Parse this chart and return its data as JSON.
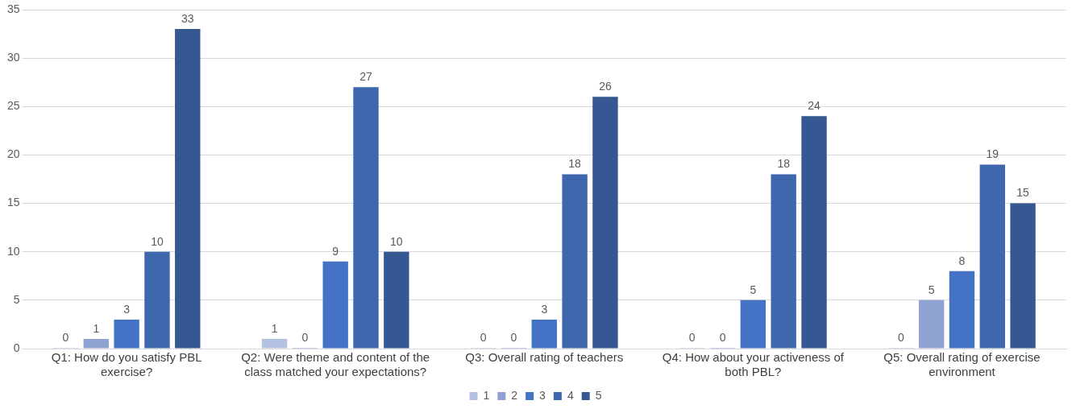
{
  "chart_data": {
    "type": "bar",
    "categories": [
      "Q1: How do you satisfy PBL exercise?",
      "Q2: Were theme and content of the class matched your expectations?",
      "Q3: Overall rating of teachers",
      "Q4: How about your activeness of both PBL?",
      "Q5: Overall rating of exercise environment"
    ],
    "series": [
      {
        "name": "1",
        "color": "#b4c2e2",
        "values": [
          0,
          1,
          0,
          0,
          0
        ]
      },
      {
        "name": "2",
        "color": "#8fa3d2",
        "values": [
          1,
          0,
          0,
          0,
          5
        ]
      },
      {
        "name": "3",
        "color": "#4472c4",
        "values": [
          3,
          9,
          3,
          5,
          8
        ]
      },
      {
        "name": "4",
        "color": "#3e67ad",
        "values": [
          10,
          27,
          18,
          18,
          19
        ]
      },
      {
        "name": "5",
        "color": "#355792",
        "values": [
          33,
          10,
          26,
          24,
          15
        ]
      }
    ],
    "ylim": [
      0,
      35
    ],
    "yticks": [
      0,
      5,
      10,
      15,
      20,
      25,
      30,
      35
    ],
    "grid": "y",
    "legend": "bottom",
    "data_labels": true
  }
}
